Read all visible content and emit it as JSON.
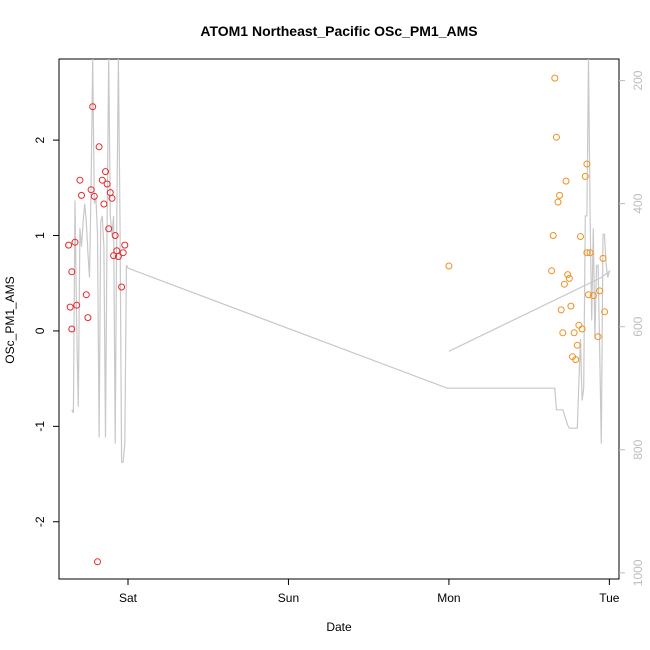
{
  "chart_data": {
    "type": "scatter",
    "title": "ATOM1 Northeast_Pacific OSc_PM1_AMS",
    "xlabel": "Date",
    "ylabel": "OSc_PM1_AMS",
    "xlim": [
      -0.43,
      3.06
    ],
    "ylim": [
      -2.6,
      2.85
    ],
    "x_ticks": [
      {
        "value": 0,
        "label": "Sat"
      },
      {
        "value": 1,
        "label": "Sun"
      },
      {
        "value": 2,
        "label": "Mon"
      },
      {
        "value": 3,
        "label": "Tue"
      }
    ],
    "y_ticks": [
      -2,
      -1,
      0,
      1,
      2
    ],
    "right_axis": {
      "ylim": [
        1010,
        165
      ],
      "ticks": [
        200,
        400,
        600,
        800,
        1000
      ],
      "color": "#bdbdbd"
    },
    "grid": false,
    "series": [
      {
        "color": "#e8272b",
        "marker": "open-circle",
        "points": [
          [
            -0.37,
            0.9
          ],
          [
            -0.36,
            0.25
          ],
          [
            -0.35,
            0.02
          ],
          [
            -0.35,
            0.62
          ],
          [
            -0.33,
            0.93
          ],
          [
            -0.32,
            0.27
          ],
          [
            -0.3,
            1.58
          ],
          [
            -0.29,
            1.42
          ],
          [
            -0.26,
            0.38
          ],
          [
            -0.25,
            0.14
          ],
          [
            -0.23,
            1.48
          ],
          [
            -0.22,
            2.35
          ],
          [
            -0.21,
            1.41
          ],
          [
            -0.19,
            -2.42
          ],
          [
            -0.18,
            1.93
          ],
          [
            -0.16,
            1.58
          ],
          [
            -0.15,
            1.33
          ],
          [
            -0.14,
            1.67
          ],
          [
            -0.13,
            1.54
          ],
          [
            -0.12,
            1.07
          ],
          [
            -0.11,
            1.45
          ],
          [
            -0.1,
            1.39
          ],
          [
            -0.09,
            0.79
          ],
          [
            -0.08,
            1.0
          ],
          [
            -0.07,
            0.84
          ],
          [
            -0.06,
            0.78
          ],
          [
            -0.04,
            0.46
          ],
          [
            -0.03,
            0.82
          ],
          [
            -0.02,
            0.9
          ]
        ]
      },
      {
        "color": "#f0911f",
        "marker": "open-circle",
        "points": [
          [
            2.0,
            0.68
          ],
          [
            2.64,
            0.63
          ],
          [
            2.65,
            1.0
          ],
          [
            2.66,
            2.65
          ],
          [
            2.67,
            2.03
          ],
          [
            2.68,
            1.35
          ],
          [
            2.69,
            1.42
          ],
          [
            2.7,
            0.22
          ],
          [
            2.71,
            -0.02
          ],
          [
            2.72,
            0.49
          ],
          [
            2.73,
            1.57
          ],
          [
            2.74,
            0.59
          ],
          [
            2.75,
            0.55
          ],
          [
            2.76,
            0.26
          ],
          [
            2.77,
            -0.27
          ],
          [
            2.78,
            -0.02
          ],
          [
            2.79,
            -0.3
          ],
          [
            2.8,
            -0.15
          ],
          [
            2.81,
            0.06
          ],
          [
            2.82,
            0.99
          ],
          [
            2.83,
            0.02
          ],
          [
            2.85,
            1.62
          ],
          [
            2.86,
            1.75
          ],
          [
            2.86,
            0.82
          ],
          [
            2.87,
            0.38
          ],
          [
            2.88,
            0.82
          ],
          [
            2.9,
            0.37
          ],
          [
            2.93,
            -0.06
          ],
          [
            2.94,
            0.42
          ],
          [
            2.96,
            0.76
          ],
          [
            2.97,
            0.2
          ]
        ]
      }
    ],
    "line_series": {
      "color": "#c8c8c8",
      "axis": "right",
      "points": [
        [
          -0.35,
          735
        ],
        [
          -0.34,
          740
        ],
        [
          -0.33,
          395
        ],
        [
          -0.32,
          600
        ],
        [
          -0.31,
          730
        ],
        [
          -0.3,
          440
        ],
        [
          -0.29,
          470
        ],
        [
          -0.28,
          430
        ],
        [
          -0.27,
          400
        ],
        [
          -0.26,
          430
        ],
        [
          -0.25,
          480
        ],
        [
          -0.24,
          520
        ],
        [
          -0.23,
          370
        ],
        [
          -0.22,
          165
        ],
        [
          -0.21,
          400
        ],
        [
          -0.2,
          390
        ],
        [
          -0.19,
          450
        ],
        [
          -0.18,
          780
        ],
        [
          -0.17,
          430
        ],
        [
          -0.16,
          420
        ],
        [
          -0.15,
          470
        ],
        [
          -0.14,
          780
        ],
        [
          -0.13,
          430
        ],
        [
          -0.12,
          165
        ],
        [
          -0.11,
          420
        ],
        [
          -0.1,
          450
        ],
        [
          -0.09,
          420
        ],
        [
          -0.08,
          790
        ],
        [
          -0.07,
          420
        ],
        [
          -0.06,
          165
        ],
        [
          -0.05,
          430
        ],
        [
          -0.04,
          820
        ],
        [
          -0.03,
          820
        ],
        [
          -0.02,
          790
        ],
        [
          -0.01,
          500
        ],
        [
          0.0,
          505
        ],
        [
          1.99,
          700
        ],
        [
          2.64,
          700
        ],
        [
          2.66,
          700
        ],
        [
          2.67,
          735
        ],
        [
          2.69,
          735
        ],
        [
          2.71,
          735
        ],
        [
          2.74,
          760
        ],
        [
          2.75,
          765
        ],
        [
          2.78,
          765
        ],
        [
          2.8,
          765
        ],
        [
          2.81,
          690
        ],
        [
          2.82,
          620
        ],
        [
          2.83,
          720
        ],
        [
          2.84,
          700
        ],
        [
          2.85,
          420
        ],
        [
          2.86,
          420
        ],
        [
          2.87,
          165
        ],
        [
          2.88,
          420
        ],
        [
          2.89,
          590
        ],
        [
          2.9,
          440
        ],
        [
          2.91,
          620
        ],
        [
          2.92,
          500
        ],
        [
          2.93,
          500
        ],
        [
          2.94,
          640
        ],
        [
          2.95,
          790
        ],
        [
          2.96,
          450
        ],
        [
          2.97,
          450
        ],
        [
          2.97,
          455
        ],
        [
          2.98,
          500
        ],
        [
          2.99,
          520
        ],
        [
          3.0,
          510
        ],
        [
          2.95,
          520
        ],
        [
          2.0,
          640
        ]
      ]
    }
  }
}
